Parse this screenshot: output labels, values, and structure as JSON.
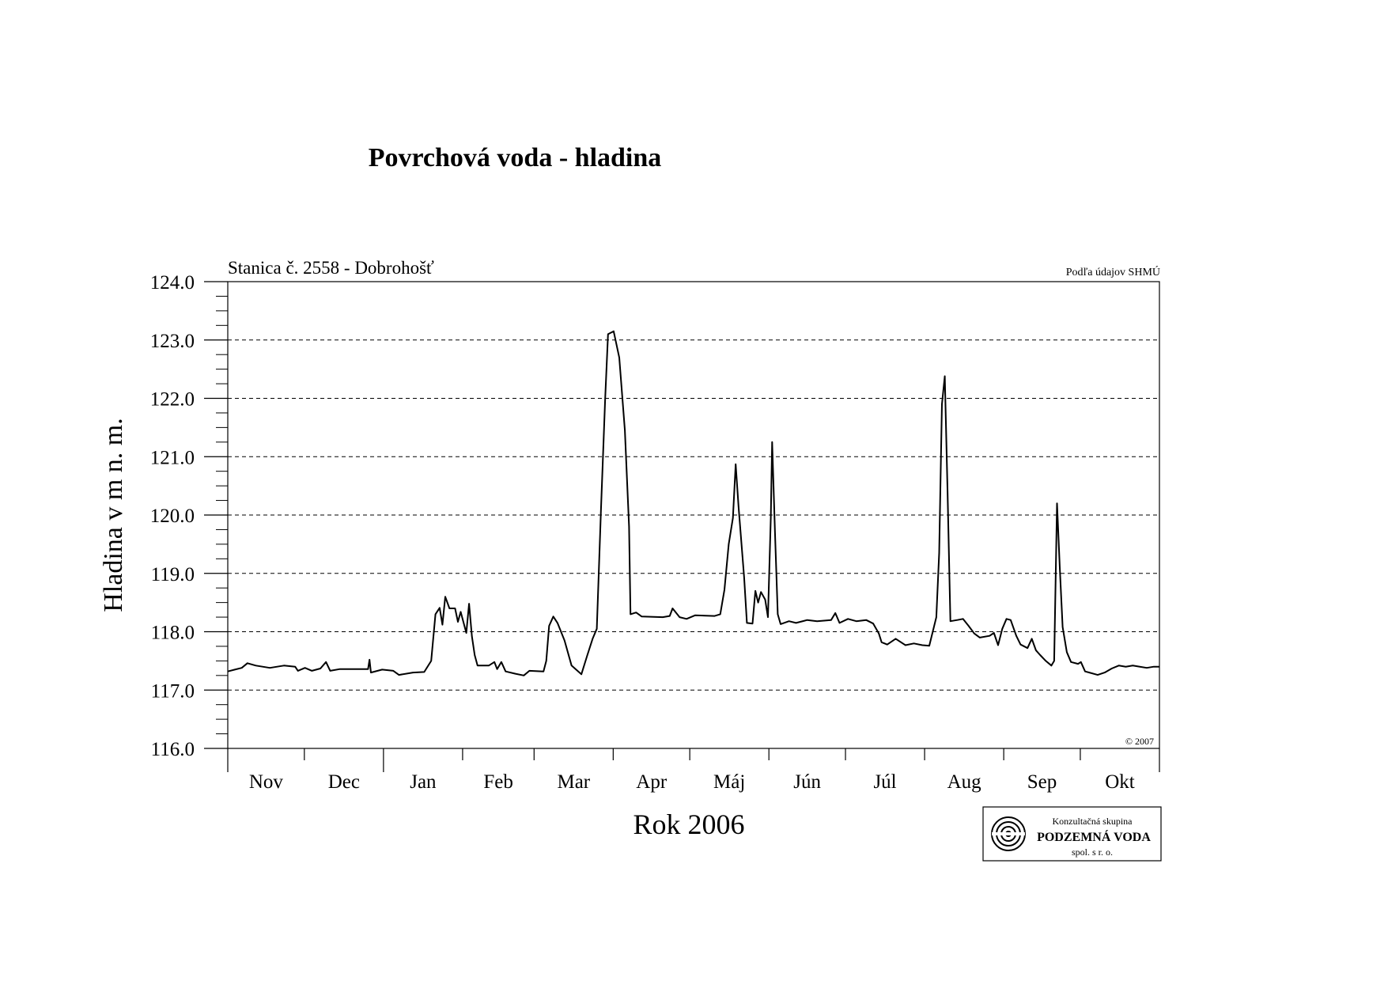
{
  "chart_data": {
    "type": "line",
    "title": "Povrchová voda - hladina",
    "xlabel": "Rok 2006",
    "ylabel": "Hladina v m n. m.",
    "station_label": "Stanica č. 2558 - Dobrohošť",
    "source_note": "Podľa údajov SHMÚ",
    "copyright": "© 2007",
    "months": [
      "Nov",
      "Dec",
      "Jan",
      "Feb",
      "Mar",
      "Apr",
      "Máj",
      "Jún",
      "Júl",
      "Aug",
      "Sep",
      "Okt"
    ],
    "y_ticks": [
      "124.0",
      "123.0",
      "122.0",
      "121.0",
      "120.0",
      "119.0",
      "118.0",
      "117.0",
      "116.0"
    ],
    "ylim": [
      116.0,
      124.0
    ],
    "grid": "horizontal dashed",
    "series": [
      {
        "values": [
          [
            0,
            117.32
          ],
          [
            5,
            117.35
          ],
          [
            10,
            117.38
          ],
          [
            14,
            117.46
          ],
          [
            20,
            117.42
          ],
          [
            30,
            117.38
          ],
          [
            40,
            117.42
          ],
          [
            48,
            117.4
          ],
          [
            50,
            117.33
          ],
          [
            55,
            117.38
          ],
          [
            60,
            117.33
          ],
          [
            66,
            117.37
          ],
          [
            70,
            117.48
          ],
          [
            73,
            117.33
          ],
          [
            80,
            117.36
          ],
          [
            95,
            117.36
          ],
          [
            100,
            117.36
          ],
          [
            101,
            117.52
          ],
          [
            102,
            117.3
          ],
          [
            110,
            117.35
          ],
          [
            118,
            117.33
          ],
          [
            122,
            117.26
          ],
          [
            132,
            117.3
          ],
          [
            140,
            117.31
          ],
          [
            145,
            117.5
          ],
          [
            148,
            118.3
          ],
          [
            151,
            118.41
          ],
          [
            153,
            118.12
          ],
          [
            155,
            118.6
          ],
          [
            158,
            118.4
          ],
          [
            162,
            118.4
          ],
          [
            164,
            118.17
          ],
          [
            166,
            118.34
          ],
          [
            170,
            117.98
          ],
          [
            172,
            118.48
          ],
          [
            174,
            117.92
          ],
          [
            176,
            117.6
          ],
          [
            178,
            117.42
          ],
          [
            186,
            117.42
          ],
          [
            190,
            117.48
          ],
          [
            192,
            117.36
          ],
          [
            195,
            117.48
          ],
          [
            198,
            117.32
          ],
          [
            205,
            117.28
          ],
          [
            211,
            117.25
          ],
          [
            215,
            117.33
          ],
          [
            225,
            117.32
          ],
          [
            227,
            117.5
          ],
          [
            229,
            118.1
          ],
          [
            232,
            118.26
          ],
          [
            235,
            118.15
          ],
          [
            240,
            117.85
          ],
          [
            245,
            117.42
          ],
          [
            252,
            117.27
          ],
          [
            256,
            117.58
          ],
          [
            260,
            117.88
          ],
          [
            263,
            118.05
          ],
          [
            266,
            120.1
          ],
          [
            269,
            122.0
          ],
          [
            271,
            123.1
          ],
          [
            275,
            123.15
          ],
          [
            279,
            122.7
          ],
          [
            283,
            121.45
          ],
          [
            286,
            119.8
          ],
          [
            287,
            118.3
          ],
          [
            291,
            118.33
          ],
          [
            295,
            118.26
          ],
          [
            310,
            118.25
          ],
          [
            315,
            118.27
          ],
          [
            317,
            118.4
          ],
          [
            322,
            118.25
          ],
          [
            327,
            118.22
          ],
          [
            333,
            118.28
          ],
          [
            347,
            118.27
          ],
          [
            351,
            118.3
          ],
          [
            354,
            118.72
          ],
          [
            357,
            119.5
          ],
          [
            360,
            119.95
          ],
          [
            362,
            120.87
          ],
          [
            364,
            120.15
          ],
          [
            368,
            118.93
          ],
          [
            370,
            118.15
          ],
          [
            374,
            118.14
          ],
          [
            376,
            118.7
          ],
          [
            378,
            118.5
          ],
          [
            380,
            118.68
          ],
          [
            383,
            118.55
          ],
          [
            385,
            118.25
          ],
          [
            387,
            119.95
          ],
          [
            388,
            121.25
          ],
          [
            390,
            119.7
          ],
          [
            392,
            118.3
          ],
          [
            394,
            118.13
          ],
          [
            400,
            118.18
          ],
          [
            405,
            118.15
          ],
          [
            413,
            118.2
          ],
          [
            420,
            118.18
          ],
          [
            430,
            118.2
          ],
          [
            433,
            118.32
          ],
          [
            436,
            118.15
          ],
          [
            442,
            118.22
          ],
          [
            448,
            118.18
          ],
          [
            455,
            118.2
          ],
          [
            460,
            118.14
          ],
          [
            464,
            117.97
          ],
          [
            466,
            117.82
          ],
          [
            470,
            117.78
          ],
          [
            476,
            117.88
          ],
          [
            483,
            117.77
          ],
          [
            489,
            117.8
          ],
          [
            495,
            117.77
          ],
          [
            500,
            117.76
          ],
          [
            505,
            118.25
          ],
          [
            507,
            119.35
          ],
          [
            509,
            121.9
          ],
          [
            511,
            122.38
          ],
          [
            513,
            120.4
          ],
          [
            515,
            118.18
          ],
          [
            520,
            118.2
          ],
          [
            524,
            118.22
          ],
          [
            528,
            118.1
          ],
          [
            532,
            117.97
          ],
          [
            536,
            117.9
          ],
          [
            543,
            117.93
          ],
          [
            546,
            117.98
          ],
          [
            549,
            117.77
          ],
          [
            552,
            118.05
          ],
          [
            555,
            118.22
          ],
          [
            558,
            118.2
          ],
          [
            562,
            117.93
          ],
          [
            565,
            117.78
          ],
          [
            570,
            117.72
          ],
          [
            573,
            117.88
          ],
          [
            576,
            117.68
          ],
          [
            579,
            117.6
          ],
          [
            583,
            117.5
          ],
          [
            587,
            117.42
          ],
          [
            589,
            117.5
          ],
          [
            591,
            120.2
          ],
          [
            593,
            119.1
          ],
          [
            595,
            118.08
          ],
          [
            598,
            117.65
          ],
          [
            601,
            117.48
          ],
          [
            606,
            117.45
          ],
          [
            608,
            117.48
          ],
          [
            611,
            117.32
          ],
          [
            614,
            117.3
          ],
          [
            620,
            117.26
          ],
          [
            625,
            117.3
          ],
          [
            630,
            117.37
          ],
          [
            635,
            117.42
          ],
          [
            640,
            117.4
          ],
          [
            645,
            117.42
          ],
          [
            650,
            117.4
          ],
          [
            655,
            117.38
          ],
          [
            660,
            117.4
          ],
          [
            664,
            117.4
          ]
        ]
      }
    ]
  },
  "logo": {
    "line1": "Konzultačná skupina",
    "line2": "PODZEMNÁ VODA",
    "line3": "spol. s r. o."
  }
}
